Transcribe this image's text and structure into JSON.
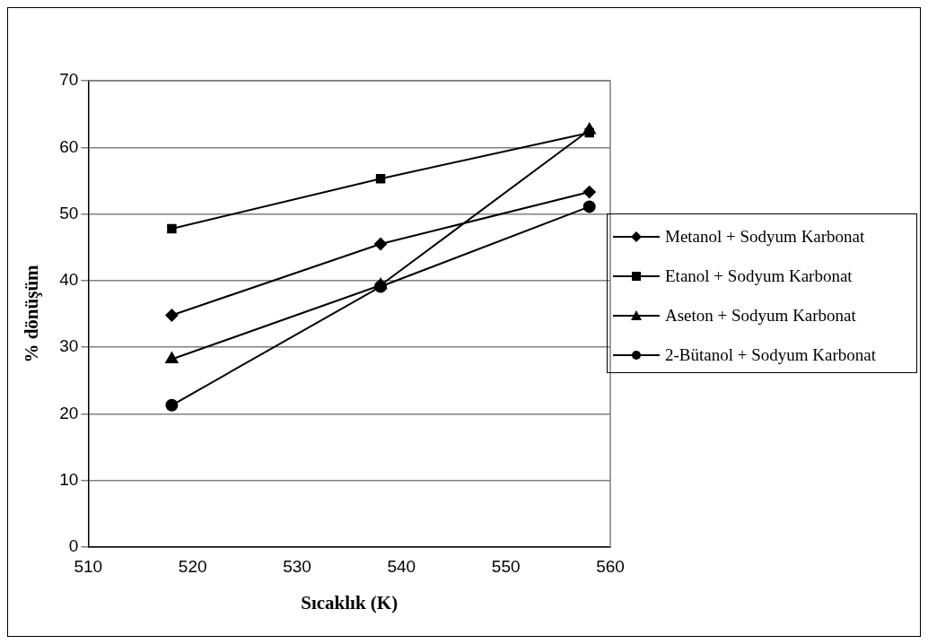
{
  "chart_data": {
    "type": "line",
    "xlabel": "Sıcaklık (K)",
    "ylabel": "% dönüşüm",
    "x": [
      518,
      538,
      558
    ],
    "series": [
      {
        "name": "Metanol + Sodyum Karbonat",
        "color": "#000000",
        "marker": "diamond",
        "values": [
          34.8,
          45.5,
          53.3
        ]
      },
      {
        "name": "Etanol + Sodyum Karbonat",
        "color": "#000000",
        "marker": "square",
        "values": [
          47.8,
          55.3,
          62.2
        ]
      },
      {
        "name": "Aseton + Sodyum Karbonat",
        "color": "#000000",
        "marker": "triangle",
        "values": [
          28.2,
          39.3,
          62.6
        ]
      },
      {
        "name": "2-Bütanol + Sodyum Karbonat",
        "color": "#000000",
        "marker": "circle",
        "values": [
          21.3,
          39.1,
          51.1
        ]
      }
    ],
    "xlim": [
      510,
      560
    ],
    "xticks": [
      510,
      520,
      530,
      540,
      550,
      560
    ],
    "ylim": [
      0,
      70
    ],
    "yticks": [
      0,
      10,
      20,
      30,
      40,
      50,
      60,
      70
    ],
    "grid": "y",
    "legend": "right",
    "line_style": "solid"
  }
}
